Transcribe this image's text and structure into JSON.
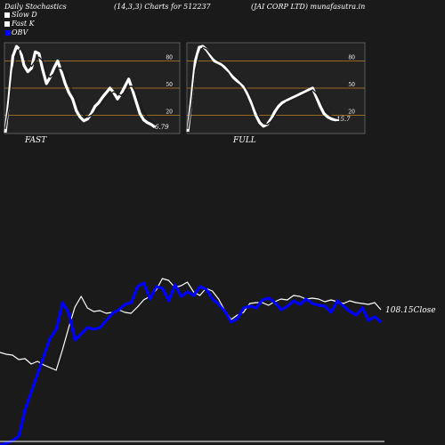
{
  "header": {
    "left": "Daily Stochastics",
    "middle": "(14,3,3) Charts for 512237",
    "right": "(JAI CORP LTD) munafasutra.in"
  },
  "legend": [
    {
      "label": "Slow  D",
      "color": "#ffffff"
    },
    {
      "label": "Fast K",
      "color": "#ffffff"
    },
    {
      "label": "OBV",
      "color": "#0000ff"
    }
  ],
  "chart_data": [
    {
      "type": "line",
      "panel": "FAST",
      "label": "FAST",
      "ylim": [
        0,
        100
      ],
      "ticks": [
        20,
        50,
        80
      ],
      "reference_lines": [
        20,
        50,
        80
      ],
      "reference_color": "#c08020",
      "end_value_label": "6.79",
      "series": [
        {
          "values": [
            1,
            40,
            85,
            96,
            92,
            75,
            68,
            72,
            90,
            88,
            70,
            55,
            62,
            72,
            80,
            68,
            55,
            45,
            38,
            25,
            18,
            14,
            16,
            22,
            30,
            34,
            40,
            45,
            50,
            45,
            38,
            44,
            52,
            60,
            48,
            35,
            22,
            15,
            12,
            10,
            7
          ]
        },
        {
          "values": [
            5,
            30,
            70,
            88,
            94,
            86,
            78,
            74,
            80,
            84,
            80,
            66,
            62,
            66,
            72,
            72,
            66,
            56,
            46,
            36,
            26,
            20,
            18,
            20,
            24,
            28,
            34,
            40,
            44,
            46,
            44,
            42,
            46,
            52,
            52,
            44,
            34,
            24,
            18,
            14,
            11
          ]
        }
      ]
    },
    {
      "type": "line",
      "panel": "FULL",
      "label": "FULL",
      "ylim": [
        0,
        100
      ],
      "ticks": [
        20,
        50,
        80
      ],
      "reference_lines": [
        20,
        50,
        80
      ],
      "reference_color": "#c08020",
      "end_value_label": "15.7",
      "series": [
        {
          "values": [
            2,
            40,
            80,
            95,
            96,
            92,
            86,
            80,
            78,
            76,
            72,
            68,
            62,
            58,
            55,
            50,
            42,
            32,
            20,
            12,
            8,
            10,
            16,
            24,
            30,
            34,
            36,
            38,
            40,
            42,
            44,
            46,
            48,
            50,
            40,
            30,
            22,
            18,
            16,
            15,
            15.7
          ]
        },
        {
          "values": [
            5,
            32,
            70,
            88,
            95,
            93,
            88,
            83,
            80,
            78,
            75,
            70,
            65,
            61,
            57,
            53,
            46,
            37,
            26,
            17,
            11,
            10,
            13,
            19,
            26,
            31,
            34,
            36,
            38,
            40,
            42,
            44,
            46,
            48,
            44,
            36,
            28,
            22,
            19,
            17,
            16
          ]
        }
      ]
    },
    {
      "type": "line",
      "panel": "price-obv",
      "close_label": "108.15Close",
      "series": [
        {
          "name": "Close",
          "color": "#ffffff",
          "values": [
            396,
            398,
            399,
            404,
            403,
            409,
            406,
            410,
            413,
            416,
            393,
            368,
            345,
            333,
            346,
            350,
            349,
            352,
            351,
            348,
            351,
            352,
            345,
            337,
            333,
            326,
            313,
            315,
            323,
            321,
            317,
            328,
            332,
            324,
            327,
            336,
            349,
            359,
            354,
            351,
            341,
            340,
            340,
            343,
            339,
            336,
            337,
            332,
            333,
            336,
            335,
            336,
            339,
            337,
            339,
            341,
            338,
            340,
            341,
            342,
            340,
            348
          ]
        },
        {
          "name": "OBV",
          "color": "#0000ff",
          "values": [
            500,
            498,
            495,
            490,
            460,
            440,
            420,
            400,
            380,
            370,
            340,
            352,
            382,
            375,
            368,
            370,
            368,
            360,
            352,
            348,
            342,
            340,
            322,
            318,
            336,
            322,
            324,
            338,
            320,
            333,
            328,
            332,
            322,
            325,
            336,
            342,
            350,
            362,
            358,
            346,
            344,
            346,
            337,
            335,
            340,
            348,
            344,
            338,
            342,
            336,
            341,
            343,
            344,
            351,
            338,
            344,
            350,
            354,
            346,
            360,
            356,
            362
          ]
        }
      ]
    }
  ]
}
